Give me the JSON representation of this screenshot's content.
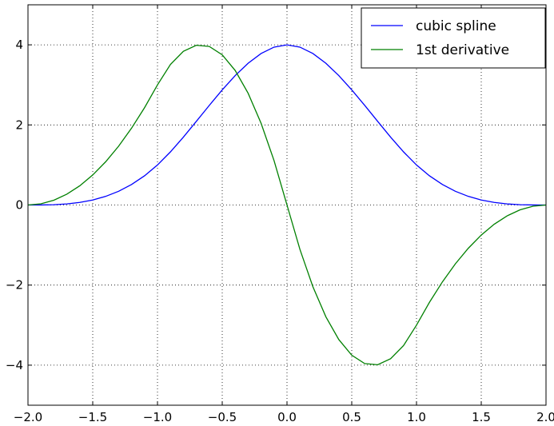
{
  "chart_data": {
    "type": "line",
    "x": [
      -2.0,
      -1.9,
      -1.8,
      -1.7,
      -1.6,
      -1.5,
      -1.4,
      -1.3,
      -1.2,
      -1.1,
      -1.0,
      -0.9,
      -0.8,
      -0.7,
      -0.6,
      -0.5,
      -0.4,
      -0.3,
      -0.2,
      -0.1,
      0.0,
      0.1,
      0.2,
      0.3,
      0.4,
      0.5,
      0.6,
      0.7,
      0.8,
      0.9,
      1.0,
      1.1,
      1.2,
      1.3,
      1.4,
      1.5,
      1.6,
      1.7,
      1.8,
      1.9,
      2.0
    ],
    "series": [
      {
        "name": "cubic spline",
        "color": "#0000ff",
        "values": [
          0,
          0.001,
          0.008,
          0.027,
          0.064,
          0.125,
          0.216,
          0.343,
          0.512,
          0.729,
          1,
          1.327,
          1.696,
          2.089,
          2.488,
          2.875,
          3.232,
          3.541,
          3.784,
          3.943,
          4,
          3.943,
          3.784,
          3.541,
          3.232,
          2.875,
          2.488,
          2.089,
          1.696,
          1.327,
          1,
          0.729,
          0.512,
          0.343,
          0.216,
          0.125,
          0.064,
          0.027,
          0.008,
          0.001,
          0
        ]
      },
      {
        "name": "1st derivative",
        "color": "#008000",
        "values": [
          0,
          0.03,
          0.12,
          0.27,
          0.48,
          0.75,
          1.08,
          1.47,
          1.92,
          2.43,
          3,
          3.51,
          3.84,
          3.99,
          3.96,
          3.75,
          3.36,
          2.79,
          2.04,
          1.11,
          0,
          -1.11,
          -2.04,
          -2.79,
          -3.36,
          -3.75,
          -3.96,
          -3.99,
          -3.84,
          -3.51,
          -3,
          -2.43,
          -1.92,
          -1.47,
          -1.08,
          -0.75,
          -0.48,
          -0.27,
          -0.12,
          -0.03,
          0
        ]
      }
    ],
    "xlim": [
      -2,
      2
    ],
    "ylim": [
      -5,
      5
    ],
    "xticks": [
      {
        "value": -2,
        "label": "−2.0"
      },
      {
        "value": -1.5,
        "label": "−1.5"
      },
      {
        "value": -1,
        "label": "−1.0"
      },
      {
        "value": -0.5,
        "label": "−0.5"
      },
      {
        "value": 0,
        "label": "0.0"
      },
      {
        "value": 0.5,
        "label": "0.5"
      },
      {
        "value": 1,
        "label": "1.0"
      },
      {
        "value": 1.5,
        "label": "1.5"
      },
      {
        "value": 2,
        "label": "2.0"
      }
    ],
    "yticks": [
      {
        "value": -4,
        "label": "−4"
      },
      {
        "value": -2,
        "label": "−2"
      },
      0,
      2,
      4
    ],
    "grid": true,
    "legend": "upper right"
  }
}
